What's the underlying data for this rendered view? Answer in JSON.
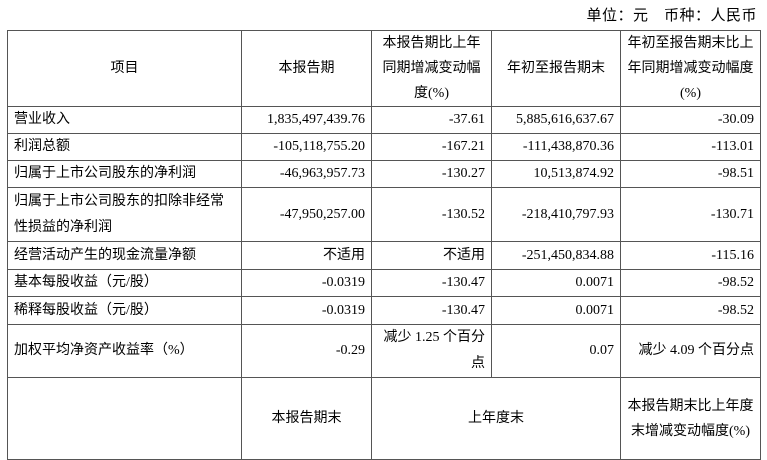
{
  "unit_line": "单位：元　币种：人民币",
  "header": [
    "项目",
    "本报告期",
    "本报告期比上年同期增减变动幅度(%)",
    "年初至报告期末",
    "年初至报告期末比上年同期增减变动幅度(%)"
  ],
  "rows": [
    [
      "营业收入",
      "1,835,497,439.76",
      "-37.61",
      "5,885,616,637.67",
      "-30.09"
    ],
    [
      "利润总额",
      "-105,118,755.20",
      "-167.21",
      "-111,438,870.36",
      "-113.01"
    ],
    [
      "归属于上市公司股东的净利润",
      "-46,963,957.73",
      "-130.27",
      "10,513,874.92",
      "-98.51"
    ],
    [
      "归属于上市公司股东的扣除非经常性损益的净利润",
      "-47,950,257.00",
      "-130.52",
      "-218,410,797.93",
      "-130.71"
    ],
    [
      "经营活动产生的现金流量净额",
      "不适用",
      "不适用",
      "-251,450,834.88",
      "-115.16"
    ],
    [
      "基本每股收益（元/股）",
      "-0.0319",
      "-130.47",
      "0.0071",
      "-98.52"
    ],
    [
      "稀释每股收益（元/股）",
      "-0.0319",
      "-130.47",
      "0.0071",
      "-98.52"
    ],
    [
      "加权平均净资产收益率（%）",
      "-0.29",
      "减少 1.25 个百分点",
      "0.07",
      "减少 4.09 个百分点"
    ]
  ],
  "footer_header": [
    "",
    "本报告期末",
    "上年度末",
    "本报告期末比上年度末增减变动幅度(%)"
  ]
}
